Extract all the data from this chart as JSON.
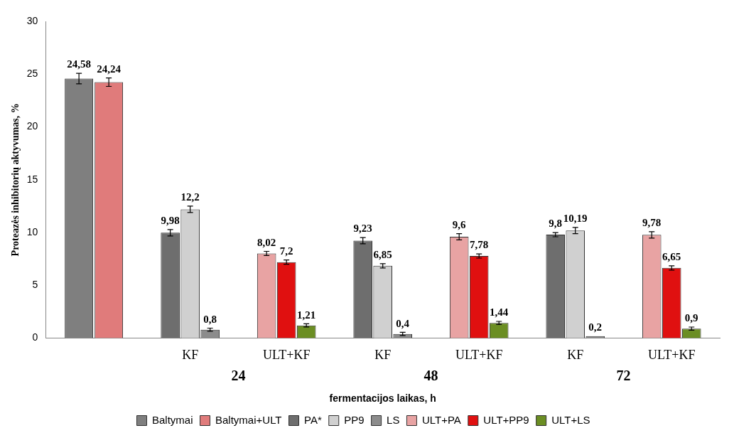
{
  "chart_data": {
    "type": "bar",
    "xlabel": "fermentacijos laikas, h",
    "ylabel": "Proteazės inhibitorių aktyvumas, %",
    "categories": [
      null,
      "KF",
      "ULT+KF",
      "KF",
      "ULT+KF",
      "KF",
      "ULT+KF"
    ],
    "series": [
      {
        "name": "Baltymai",
        "color": "#7f7f7f",
        "values": [
          24.58,
          null,
          null,
          null,
          null,
          null,
          null
        ],
        "errors": [
          0.5,
          null,
          null,
          null,
          null,
          null,
          null
        ],
        "value_labels": [
          "24,58",
          null,
          null,
          null,
          null,
          null,
          null
        ]
      },
      {
        "name": "Baltymai+ULT",
        "color": "#e07b7b",
        "values": [
          24.24,
          null,
          null,
          null,
          null,
          null,
          null
        ],
        "errors": [
          0.4,
          null,
          null,
          null,
          null,
          null,
          null
        ],
        "value_labels": [
          "24,24",
          null,
          null,
          null,
          null,
          null,
          null
        ]
      },
      {
        "name": "PA*",
        "color": "#6e6e6e",
        "values": [
          null,
          9.98,
          null,
          9.23,
          null,
          9.8,
          null
        ],
        "errors": [
          null,
          0.3,
          null,
          0.3,
          null,
          0.2,
          null
        ],
        "value_labels": [
          null,
          "9,98",
          null,
          "9,23",
          null,
          "9,8",
          null
        ]
      },
      {
        "name": "PP9",
        "color": "#d0d0d0",
        "values": [
          null,
          12.2,
          null,
          6.85,
          null,
          10.19,
          null
        ],
        "errors": [
          null,
          0.3,
          null,
          0.2,
          null,
          0.3,
          null
        ],
        "value_labels": [
          null,
          "12,2",
          null,
          "6,85",
          null,
          "10,19",
          null
        ]
      },
      {
        "name": "LS",
        "color": "#8c8c8c",
        "values": [
          null,
          0.8,
          null,
          0.4,
          null,
          0.2,
          null
        ],
        "errors": [
          null,
          0.15,
          null,
          0.15,
          null,
          null,
          null
        ],
        "value_labels": [
          null,
          "0,8",
          null,
          "0,4",
          null,
          "0,2",
          null
        ]
      },
      {
        "name": "ULT+PA",
        "color": "#e8a3a3",
        "values": [
          null,
          null,
          8.02,
          null,
          9.6,
          null,
          9.78
        ],
        "errors": [
          null,
          null,
          0.2,
          null,
          0.3,
          null,
          0.3
        ],
        "value_labels": [
          null,
          null,
          "8,02",
          null,
          "9,6",
          null,
          "9,78"
        ]
      },
      {
        "name": "ULT+PP9",
        "color": "#e01010",
        "values": [
          null,
          null,
          7.2,
          null,
          7.78,
          null,
          6.65
        ],
        "errors": [
          null,
          null,
          0.2,
          null,
          0.2,
          null,
          0.2
        ],
        "value_labels": [
          null,
          null,
          "7,2",
          null,
          "7,78",
          null,
          "6,65"
        ]
      },
      {
        "name": "ULT+LS",
        "color": "#6b8e23",
        "values": [
          null,
          null,
          1.21,
          null,
          1.44,
          null,
          0.9
        ],
        "errors": [
          null,
          null,
          0.15,
          null,
          0.15,
          null,
          0.15
        ],
        "value_labels": [
          null,
          null,
          "1,21",
          null,
          "1,44",
          null,
          "0,9"
        ]
      }
    ],
    "ylim": [
      0,
      30
    ],
    "yticks": [
      0,
      5,
      10,
      15,
      20,
      25,
      30
    ],
    "grid": false,
    "legend": "bottom",
    "annotations": [
      "24",
      "48",
      "72"
    ]
  }
}
